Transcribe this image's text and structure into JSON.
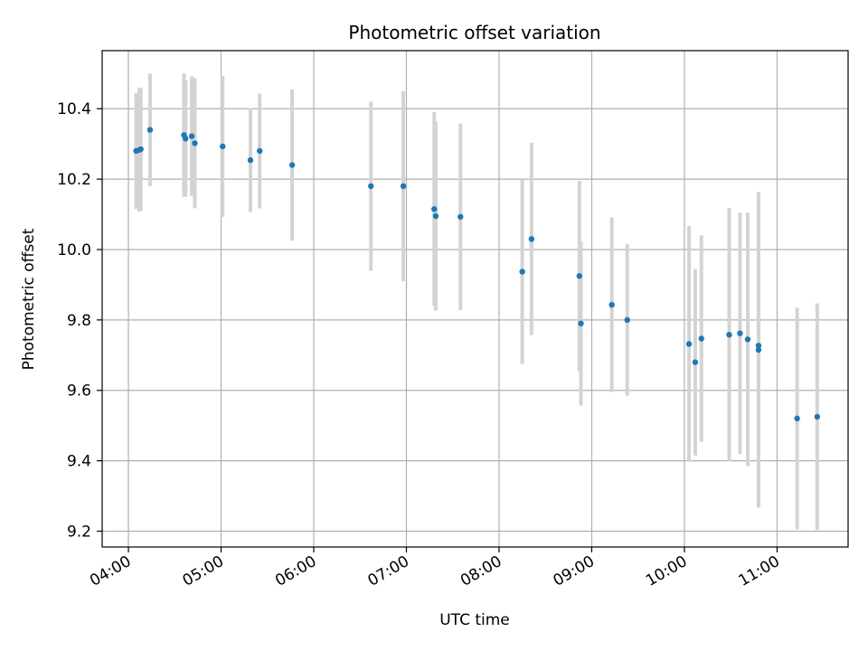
{
  "chart_data": {
    "type": "scatter",
    "title": "Photometric offset variation",
    "xlabel": "UTC time",
    "ylabel": "Photometric offset",
    "xlim": [
      "03:43",
      "11:46"
    ],
    "ylim": [
      9.155,
      10.565
    ],
    "grid": true,
    "x_ticks": [
      "04:00",
      "05:00",
      "06:00",
      "07:00",
      "08:00",
      "09:00",
      "10:00",
      "11:00"
    ],
    "y_ticks": [
      "9.2",
      "9.4",
      "9.6",
      "9.8",
      "10.0",
      "10.2",
      "10.4"
    ],
    "colors": {
      "point": "#1f77b4",
      "errorbar": "#d3d3d3",
      "grid": "#b0b0b0"
    },
    "series": [
      {
        "points": [
          {
            "x": "04:05",
            "y": 10.28,
            "err": 0.165
          },
          {
            "x": "04:07",
            "y": 10.283,
            "err": 0.175
          },
          {
            "x": "04:08",
            "y": 10.285,
            "err": 0.175
          },
          {
            "x": "04:14",
            "y": 10.34,
            "err": 0.16
          },
          {
            "x": "04:36",
            "y": 10.325,
            "err": 0.175
          },
          {
            "x": "04:37",
            "y": 10.315,
            "err": 0.165
          },
          {
            "x": "04:41",
            "y": 10.322,
            "err": 0.17
          },
          {
            "x": "04:43",
            "y": 10.302,
            "err": 0.185
          },
          {
            "x": "05:01",
            "y": 10.293,
            "err": 0.2
          },
          {
            "x": "05:19",
            "y": 10.254,
            "err": 0.148
          },
          {
            "x": "05:25",
            "y": 10.28,
            "err": 0.163
          },
          {
            "x": "05:46",
            "y": 10.24,
            "err": 0.215
          },
          {
            "x": "06:37",
            "y": 10.18,
            "err": 0.24
          },
          {
            "x": "06:58",
            "y": 10.18,
            "err": 0.27
          },
          {
            "x": "07:18",
            "y": 10.115,
            "err": 0.275
          },
          {
            "x": "07:19",
            "y": 10.095,
            "err": 0.268
          },
          {
            "x": "07:35",
            "y": 10.093,
            "err": 0.265
          },
          {
            "x": "08:15",
            "y": 9.937,
            "err": 0.262
          },
          {
            "x": "08:21",
            "y": 10.03,
            "err": 0.273
          },
          {
            "x": "08:52",
            "y": 9.925,
            "err": 0.27
          },
          {
            "x": "08:53",
            "y": 9.79,
            "err": 0.233
          },
          {
            "x": "09:13",
            "y": 9.843,
            "err": 0.248
          },
          {
            "x": "09:23",
            "y": 9.8,
            "err": 0.215
          },
          {
            "x": "10:03",
            "y": 9.732,
            "err": 0.335
          },
          {
            "x": "10:07",
            "y": 9.68,
            "err": 0.265
          },
          {
            "x": "10:11",
            "y": 9.747,
            "err": 0.293
          },
          {
            "x": "10:29",
            "y": 9.758,
            "err": 0.36
          },
          {
            "x": "10:36",
            "y": 9.762,
            "err": 0.343
          },
          {
            "x": "10:41",
            "y": 9.745,
            "err": 0.36
          },
          {
            "x": "10:48",
            "y": 9.727,
            "err": 0.435
          },
          {
            "x": "10:48",
            "y": 9.715,
            "err": 0.448
          },
          {
            "x": "11:13",
            "y": 9.52,
            "err": 0.315
          },
          {
            "x": "11:26",
            "y": 9.525,
            "err": 0.322
          }
        ]
      }
    ]
  }
}
